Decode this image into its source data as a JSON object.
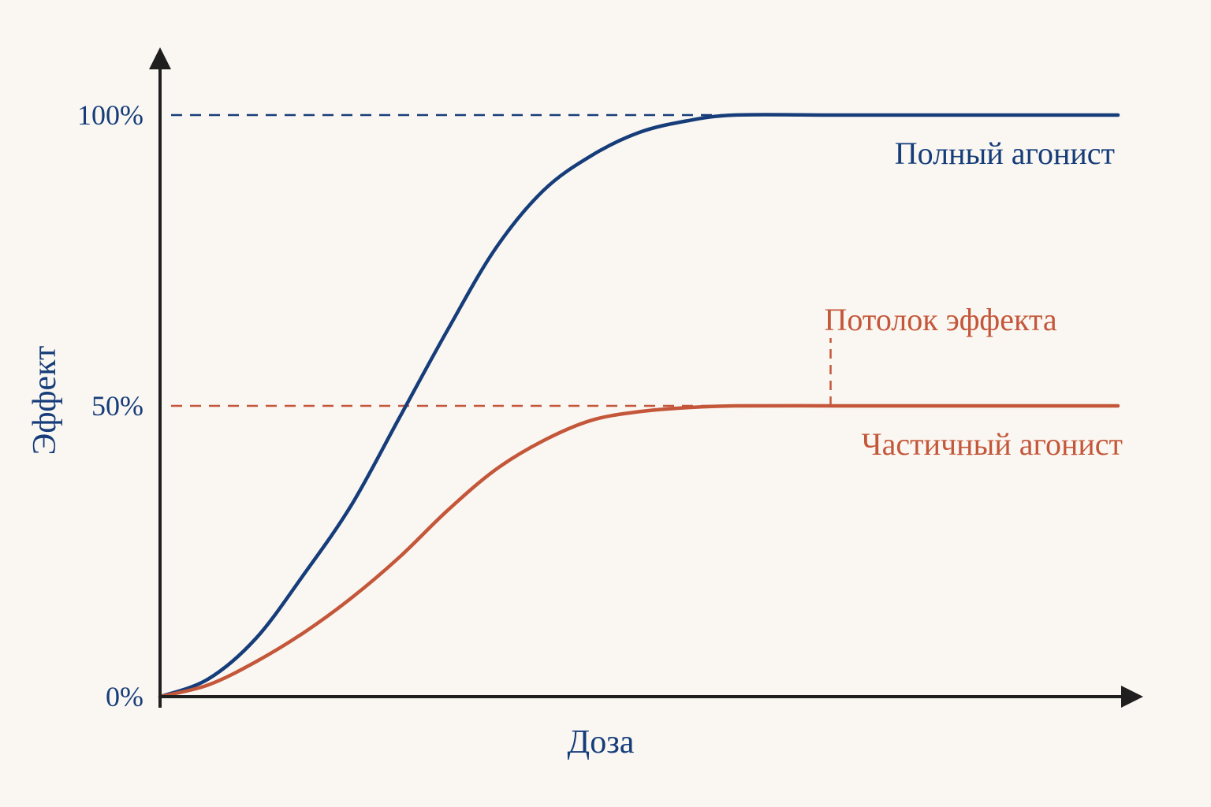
{
  "colors": {
    "background": "#faf7f2",
    "axis": "#1f1f1f",
    "full": "#163d7a",
    "partial": "#c4573a"
  },
  "chart_data": {
    "type": "line",
    "xlabel": "Доза",
    "ylabel": "Эффект",
    "ylim": [
      0,
      100
    ],
    "y_ticks": [
      {
        "value": 0,
        "label": "0%"
      },
      {
        "value": 50,
        "label": "50%"
      },
      {
        "value": 100,
        "label": "100%"
      }
    ],
    "x_ticks": [],
    "grid": false,
    "reference_lines": [
      {
        "y": 100,
        "style": "dashed",
        "series": "full"
      },
      {
        "y": 50,
        "style": "dashed",
        "series": "partial"
      }
    ],
    "series": [
      {
        "key": "full",
        "name": "Полный агонист",
        "max": 100,
        "points": [
          [
            0,
            0
          ],
          [
            5,
            3
          ],
          [
            10,
            10
          ],
          [
            15,
            21
          ],
          [
            20,
            33
          ],
          [
            25,
            48
          ],
          [
            30,
            63
          ],
          [
            35,
            77
          ],
          [
            40,
            87
          ],
          [
            45,
            93
          ],
          [
            50,
            97
          ],
          [
            55,
            99
          ],
          [
            60,
            100
          ],
          [
            70,
            100
          ],
          [
            80,
            100
          ],
          [
            100,
            100
          ]
        ]
      },
      {
        "key": "partial",
        "name": "Частичный агонист",
        "max": 50,
        "points": [
          [
            0,
            0
          ],
          [
            5,
            2
          ],
          [
            10,
            6
          ],
          [
            15,
            11
          ],
          [
            20,
            17
          ],
          [
            25,
            24
          ],
          [
            30,
            32
          ],
          [
            35,
            39
          ],
          [
            40,
            44
          ],
          [
            45,
            47.5
          ],
          [
            50,
            49
          ],
          [
            55,
            49.7
          ],
          [
            60,
            50
          ],
          [
            70,
            50
          ],
          [
            80,
            50
          ],
          [
            100,
            50
          ]
        ]
      }
    ],
    "annotations": [
      {
        "text": "Потолок эффекта",
        "y": 50,
        "x": 70,
        "series": "partial"
      }
    ]
  }
}
